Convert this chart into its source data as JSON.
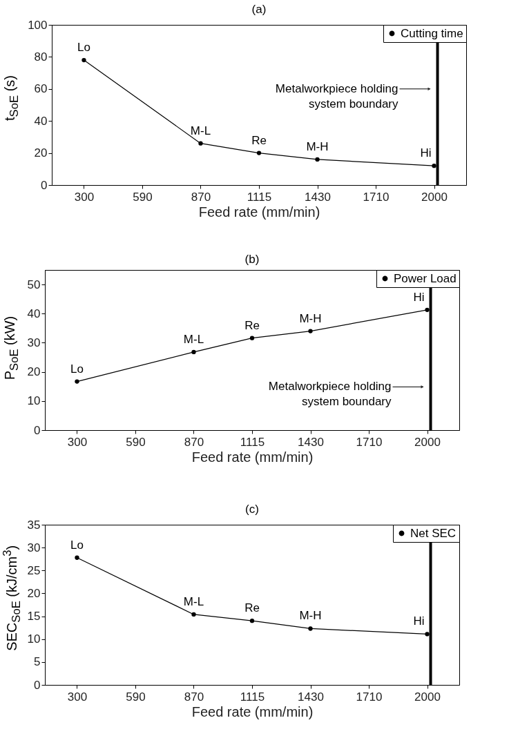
{
  "chart_data": [
    {
      "type": "line",
      "title": "(a)",
      "xlabel": "Feed rate (mm/min)",
      "ylabel": "t$_{SoE}$ (s)",
      "categories": [
        "300",
        "590",
        "870",
        "1115",
        "1430",
        "1710",
        "2000"
      ],
      "series": [
        {
          "name": "Cutting time",
          "color": "#000000",
          "values": [
            78,
            null,
            26,
            20,
            16,
            null,
            12
          ]
        }
      ],
      "ylim": [
        0,
        100
      ],
      "yticks": [
        0,
        20,
        40,
        60,
        80,
        100
      ],
      "marker": "circle",
      "legend": "top right",
      "grid": false,
      "ref_lines": [
        {
          "axis": "x",
          "value": "2000",
          "color": "#000000",
          "label": "Metalworkpiece holding\nsystem boundary"
        }
      ],
      "annotations": [
        {
          "text": "Lo",
          "x": "300",
          "y": 78
        },
        {
          "text": "M-L",
          "x": "870",
          "y": 26
        },
        {
          "text": "Re",
          "x": "1115",
          "y": 20
        },
        {
          "text": "M-H",
          "x": "1430",
          "y": 16
        },
        {
          "text": "Hi",
          "x": "2000",
          "y": 12
        }
      ]
    },
    {
      "type": "line",
      "title": "(b)",
      "xlabel": "Feed rate (mm/min)",
      "ylabel": "P$_{SoE}$ (kW)",
      "categories": [
        "300",
        "590",
        "870",
        "1115",
        "1430",
        "1710",
        "2000"
      ],
      "series": [
        {
          "name": "Power Load",
          "color": "#000000",
          "values": [
            16.7,
            null,
            26.8,
            31.6,
            34.0,
            null,
            41.3
          ]
        }
      ],
      "ylim": [
        0,
        55
      ],
      "yticks": [
        0,
        10,
        20,
        30,
        40,
        50
      ],
      "marker": "circle",
      "legend": "top right",
      "grid": false,
      "ref_lines": [
        {
          "axis": "x",
          "value": "2000",
          "color": "#000000",
          "label": "Metalworkpiece holding\nsystem boundary"
        }
      ],
      "annotations": [
        {
          "text": "Lo",
          "x": "300",
          "y": 16.7
        },
        {
          "text": "M-L",
          "x": "870",
          "y": 26.8
        },
        {
          "text": "Re",
          "x": "1115",
          "y": 31.6
        },
        {
          "text": "M-H",
          "x": "1430",
          "y": 34.0
        },
        {
          "text": "Hi",
          "x": "2000",
          "y": 41.3
        }
      ]
    },
    {
      "type": "line",
      "title": "(c)",
      "xlabel": "Feed rate (mm/min)",
      "ylabel": "SEC$_{SoE}$ (kJ/cm$^{3}$)",
      "categories": [
        "300",
        "590",
        "870",
        "1115",
        "1430",
        "1710",
        "2000"
      ],
      "series": [
        {
          "name": "Net SEC",
          "color": "#000000",
          "values": [
            27.8,
            null,
            15.4,
            14.0,
            12.3,
            null,
            11.1
          ]
        }
      ],
      "ylim": [
        0,
        35
      ],
      "yticks": [
        0,
        5,
        10,
        15,
        20,
        25,
        30,
        35
      ],
      "marker": "circle",
      "legend": "top right",
      "grid": false,
      "ref_lines": [
        {
          "axis": "x",
          "value": "2000",
          "color": "#000000"
        }
      ],
      "annotations": [
        {
          "text": "Lo",
          "x": "300",
          "y": 27.8
        },
        {
          "text": "M-L",
          "x": "870",
          "y": 15.4
        },
        {
          "text": "Re",
          "x": "1115",
          "y": 14.0
        },
        {
          "text": "M-H",
          "x": "1430",
          "y": 12.3
        },
        {
          "text": "Hi",
          "x": "2000",
          "y": 11.1
        }
      ]
    }
  ]
}
